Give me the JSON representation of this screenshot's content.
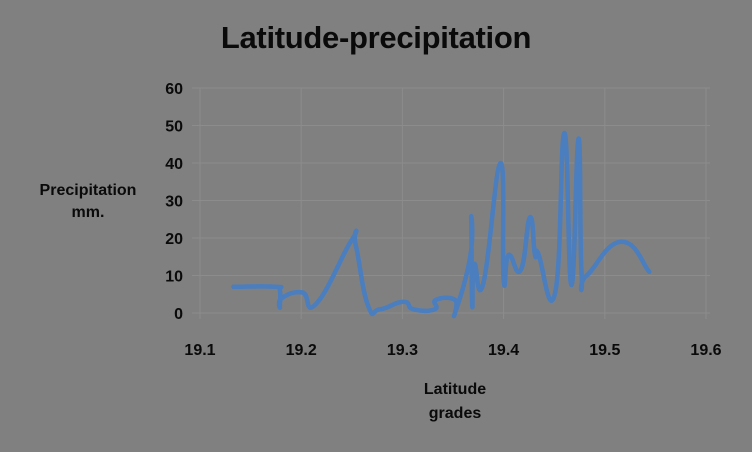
{
  "chart_data": {
    "type": "line",
    "title": "Latitude-precipitation",
    "xlabel": "Latitude grades",
    "xlabel_lines": [
      "Latitude",
      "grades"
    ],
    "ylabel": "Precipitation mm.",
    "ylabel_lines": [
      "Precipitation",
      "mm."
    ],
    "xlim": [
      19.1,
      19.6
    ],
    "ylim": [
      0,
      60
    ],
    "x_ticks": [
      "19.1",
      "19.2",
      "19.3",
      "19.4",
      "19.5",
      "19.6"
    ],
    "y_ticks": [
      "0",
      "10",
      "20",
      "30",
      "40",
      "50",
      "60"
    ],
    "grid": true,
    "legend": null,
    "series": [
      {
        "name": "Precipitation",
        "color": "#4a7ebf",
        "smooth": true,
        "x": [
          19.133,
          19.174,
          19.179,
          19.179,
          19.181,
          19.201,
          19.215,
          19.25,
          19.254,
          19.266,
          19.278,
          19.301,
          19.311,
          19.332,
          19.333,
          19.352,
          19.352,
          19.367,
          19.368,
          19.369,
          19.371,
          19.38,
          19.397,
          19.4,
          19.405,
          19.417,
          19.426,
          19.431,
          19.434,
          19.451,
          19.46,
          19.467,
          19.474,
          19.477,
          19.482,
          19.516,
          19.544
        ],
        "values": [
          7,
          7,
          6,
          1.5,
          4,
          5.5,
          2.5,
          19.5,
          18,
          2,
          1,
          3,
          1,
          1,
          3.5,
          3.5,
          0,
          15,
          25,
          2,
          13,
          8,
          40,
          9,
          15.5,
          11.5,
          25.5,
          15.5,
          16,
          5.5,
          48,
          7.5,
          46.5,
          11,
          10,
          19,
          11
        ]
      }
    ]
  },
  "colors": {
    "background": "#808080",
    "gridline": "#8c8c8c",
    "line": "#4a7ebf",
    "text": "#0a0a0a"
  }
}
